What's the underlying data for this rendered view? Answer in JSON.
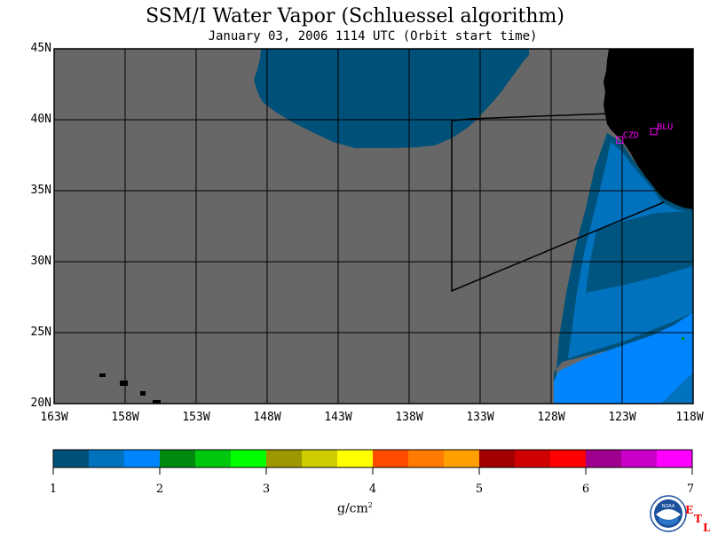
{
  "title": "SSM/I Water Vapor (Schluessel algorithm)",
  "subtitle": "January 03, 2006  1114 UTC  (Orbit start time)",
  "map": {
    "lat_labels": [
      "45N",
      "40N",
      "35N",
      "30N",
      "25N",
      "20N"
    ],
    "lon_labels": [
      "163W",
      "158W",
      "153W",
      "148W",
      "143W",
      "138W",
      "133W",
      "128W",
      "123W",
      "118W"
    ],
    "lat_range": [
      20,
      45
    ],
    "lon_range": [
      -163,
      -118
    ],
    "stations": [
      {
        "name": "CZD",
        "lat": 38.6,
        "lon": -123.2,
        "color": "#ff00ff"
      },
      {
        "name": "BLU",
        "lat": 39.2,
        "lon": -120.8,
        "color": "#ff00ff"
      }
    ],
    "no_data_color": "#676767",
    "land_color": "#000000"
  },
  "colorbar": {
    "units": "g/cm",
    "units_sup": "2",
    "tick_labels": [
      "1",
      "2",
      "3",
      "4",
      "5",
      "6",
      "7"
    ],
    "min": 1,
    "max": 7,
    "colors": [
      "#005179",
      "#0072be",
      "#0085ff",
      "#00890f",
      "#00c80f",
      "#00ff00",
      "#9e9800",
      "#cdcd00",
      "#ffff00",
      "#ff4b00",
      "#ff7a00",
      "#ffa000",
      "#a20000",
      "#d00000",
      "#ff0000",
      "#a0008e",
      "#c800c8",
      "#ff00ff"
    ]
  },
  "logo": {
    "text": "NOAA"
  },
  "etl": {
    "e": "E",
    "t": "T",
    "l": "L"
  }
}
